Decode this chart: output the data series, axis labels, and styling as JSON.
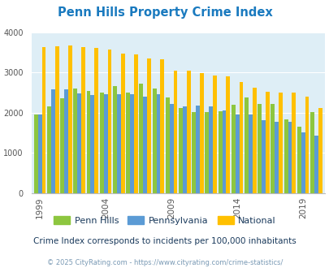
{
  "title": "Penn Hills Property Crime Index",
  "title_color": "#1a7abf",
  "subtitle": "Crime Index corresponds to incidents per 100,000 inhabitants",
  "footer": "© 2025 CityRating.com - https://www.cityrating.com/crime-statistics/",
  "years": [
    1999,
    2000,
    2001,
    2002,
    2003,
    2004,
    2005,
    2006,
    2007,
    2008,
    2009,
    2010,
    2011,
    2012,
    2013,
    2014,
    2015,
    2016,
    2017,
    2018,
    2019,
    2020
  ],
  "penn_hills": [
    1950,
    2160,
    2350,
    2590,
    2540,
    2500,
    2660,
    2490,
    2710,
    2600,
    2380,
    2120,
    2010,
    2010,
    2030,
    2200,
    2370,
    2210,
    2215,
    1840,
    1640,
    2020
  ],
  "pennsylvania": [
    1950,
    2580,
    2570,
    2470,
    2440,
    2460,
    2450,
    2450,
    2390,
    2450,
    2220,
    2150,
    2170,
    2160,
    2060,
    1950,
    1950,
    1810,
    1770,
    1760,
    1510,
    1420
  ],
  "national": [
    3620,
    3650,
    3670,
    3620,
    3610,
    3560,
    3470,
    3450,
    3340,
    3330,
    3050,
    3040,
    2980,
    2930,
    2900,
    2760,
    2620,
    2520,
    2500,
    2490,
    2400,
    2110
  ],
  "penn_hills_color": "#8dc63f",
  "pennsylvania_color": "#5b9bd5",
  "national_color": "#ffc000",
  "bg_color": "#deeef6",
  "ylim": [
    0,
    4000
  ],
  "yticks": [
    0,
    1000,
    2000,
    3000,
    4000
  ],
  "xtick_years": [
    1999,
    2004,
    2009,
    2014,
    2019
  ],
  "bar_width": 0.3,
  "legend_labels": [
    "Penn Hills",
    "Pennsylvania",
    "National"
  ],
  "subtitle_color": "#1a3a5c",
  "footer_color": "#7a9ab5",
  "grid_color": "#ffffff"
}
